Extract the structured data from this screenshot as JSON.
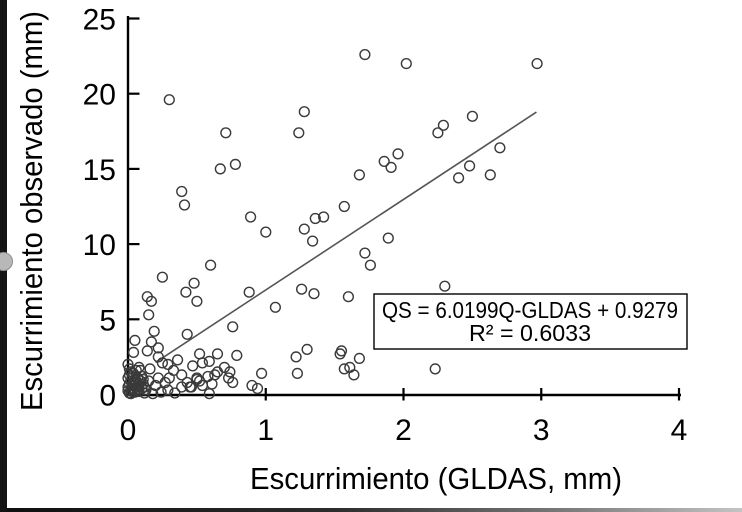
{
  "chart_data": {
    "type": "scatter",
    "title": "",
    "xlabel": "Escurrimiento (GLDAS, mm)",
    "ylabel": "Escurrimiento observado (mm)",
    "xlim": [
      0,
      4
    ],
    "ylim": [
      0,
      25
    ],
    "xticks": [
      "0",
      "1",
      "2",
      "3",
      "4"
    ],
    "yticks": [
      "0",
      "5",
      "10",
      "15",
      "20",
      "25"
    ],
    "grid": false,
    "legend": "none",
    "marker": {
      "shape": "open-circle",
      "color": "#3a3a3a"
    },
    "trendline": {
      "slope": 6.0199,
      "intercept": 0.9279,
      "x_start": 0.2,
      "x_end": 2.965,
      "color": "#555555"
    },
    "equation": {
      "line1": "QS = 6.0199Q-GLDAS + 0.9279",
      "line2": "R² = 0.6033"
    },
    "points": [
      [
        0.3,
        19.6
      ],
      [
        0.71,
        17.4
      ],
      [
        0.67,
        15.0
      ],
      [
        0.78,
        15.3
      ],
      [
        0.39,
        13.5
      ],
      [
        0.41,
        12.6
      ],
      [
        0.89,
        11.8
      ],
      [
        1.0,
        10.8
      ],
      [
        1.28,
        18.8
      ],
      [
        1.24,
        17.4
      ],
      [
        1.28,
        11.0
      ],
      [
        1.34,
        10.2
      ],
      [
        1.36,
        11.7
      ],
      [
        1.42,
        11.8
      ],
      [
        1.57,
        12.5
      ],
      [
        1.72,
        22.6
      ],
      [
        1.68,
        14.6
      ],
      [
        2.02,
        22.0
      ],
      [
        2.97,
        22.0
      ],
      [
        2.5,
        18.5
      ],
      [
        2.29,
        17.9
      ],
      [
        2.25,
        17.4
      ],
      [
        1.96,
        16.0
      ],
      [
        1.86,
        15.5
      ],
      [
        1.91,
        15.1
      ],
      [
        2.4,
        14.4
      ],
      [
        2.48,
        15.2
      ],
      [
        2.7,
        16.4
      ],
      [
        2.63,
        14.6
      ],
      [
        1.89,
        10.4
      ],
      [
        1.72,
        9.4
      ],
      [
        1.76,
        8.6
      ],
      [
        2.3,
        7.2
      ],
      [
        2.23,
        1.7
      ],
      [
        0.25,
        7.8
      ],
      [
        0.14,
        6.5
      ],
      [
        0.17,
        6.2
      ],
      [
        0.15,
        5.3
      ],
      [
        0.19,
        4.2
      ],
      [
        0.42,
        6.8
      ],
      [
        0.48,
        7.4
      ],
      [
        0.5,
        6.2
      ],
      [
        0.6,
        8.6
      ],
      [
        0.88,
        6.8
      ],
      [
        1.07,
        5.8
      ],
      [
        1.26,
        7.0
      ],
      [
        1.35,
        6.7
      ],
      [
        0.76,
        4.5
      ],
      [
        0.43,
        4.0
      ],
      [
        1.6,
        6.5
      ],
      [
        0.52,
        2.7
      ],
      [
        0.59,
        2.2
      ],
      [
        0.65,
        1.5
      ],
      [
        0.5,
        1.0
      ],
      [
        0.39,
        1.3
      ],
      [
        0.45,
        0.5
      ],
      [
        0.52,
        0.9
      ],
      [
        0.39,
        0.5
      ],
      [
        0.65,
        2.7
      ],
      [
        0.74,
        1.5
      ],
      [
        0.94,
        0.4
      ],
      [
        0.9,
        0.6
      ],
      [
        0.59,
        0.05
      ],
      [
        0.79,
        2.6
      ],
      [
        0.97,
        1.4
      ],
      [
        0.76,
        0.8
      ],
      [
        1.22,
        2.5
      ],
      [
        1.23,
        1.4
      ],
      [
        1.3,
        3.0
      ],
      [
        1.54,
        2.7
      ],
      [
        1.55,
        2.9
      ],
      [
        1.61,
        1.8
      ],
      [
        1.64,
        1.3
      ],
      [
        1.68,
        2.4
      ],
      [
        1.57,
        1.7
      ],
      [
        0.17,
        3.5
      ],
      [
        0.05,
        3.6
      ],
      [
        0.14,
        2.9
      ],
      [
        0.22,
        3.1
      ],
      [
        0.22,
        2.5
      ],
      [
        0.25,
        2.1
      ],
      [
        0.04,
        2.8
      ],
      [
        0.0,
        2.0
      ],
      [
        0.09,
        1.6
      ],
      [
        0.16,
        1.7
      ],
      [
        0.29,
        2.0
      ],
      [
        0.33,
        1.6
      ],
      [
        0.36,
        2.3
      ],
      [
        0.47,
        1.9
      ],
      [
        0.54,
        2.1
      ],
      [
        0.58,
        1.2
      ],
      [
        0.5,
        1.1
      ],
      [
        0.43,
        0.8
      ],
      [
        0.46,
        0.5
      ],
      [
        0.54,
        0.6
      ],
      [
        0.61,
        0.7
      ],
      [
        0.63,
        1.3
      ],
      [
        0.7,
        1.8
      ],
      [
        0.73,
        1.1
      ],
      [
        0.3,
        1.1
      ],
      [
        0.27,
        0.8
      ],
      [
        0.22,
        1.1
      ],
      [
        0.2,
        0.6
      ],
      [
        0.15,
        0.9
      ],
      [
        0.12,
        0.1
      ],
      [
        0.18,
        0.05
      ],
      [
        0.24,
        0.15
      ],
      [
        0.29,
        0.3
      ],
      [
        0.34,
        0.1
      ],
      [
        0.01,
        0.1
      ],
      [
        0.02,
        0.3
      ],
      [
        0.0,
        0.5
      ],
      [
        0.03,
        0.2
      ],
      [
        0.01,
        0.7
      ],
      [
        0.04,
        0.4
      ],
      [
        0.02,
        0.9
      ],
      [
        0.0,
        1.1
      ],
      [
        0.03,
        0.6
      ],
      [
        0.05,
        0.15
      ],
      [
        0.01,
        1.3
      ],
      [
        0.04,
        0.8
      ],
      [
        0.02,
        1.5
      ],
      [
        0.06,
        0.5
      ],
      [
        0.0,
        0.25
      ],
      [
        0.05,
        1.0
      ],
      [
        0.03,
        1.2
      ],
      [
        0.07,
        0.3
      ],
      [
        0.01,
        1.7
      ],
      [
        0.06,
        0.9
      ],
      [
        0.08,
        0.6
      ],
      [
        0.04,
        1.4
      ],
      [
        0.07,
        1.1
      ],
      [
        0.02,
        0.05
      ],
      [
        0.05,
        0.7
      ],
      [
        0.08,
        0.2
      ],
      [
        0.06,
        1.6
      ],
      [
        0.09,
        0.9
      ],
      [
        0.1,
        0.4
      ],
      [
        0.11,
        0.7
      ],
      [
        0.1,
        1.2
      ],
      [
        0.12,
        0.5
      ],
      [
        0.13,
        0.3
      ],
      [
        0.08,
        1.8
      ],
      [
        0.11,
        1.0
      ]
    ]
  },
  "chrome": {
    "left_bar_color": "#141414",
    "handle_color": "#b8b8b8",
    "bottom_bar_color": "#2c2c2c"
  },
  "colors": {
    "axis": "#000000",
    "text": "#000000",
    "marker": "#3a3a3a",
    "trendline": "#555555",
    "background": "#ffffff"
  }
}
